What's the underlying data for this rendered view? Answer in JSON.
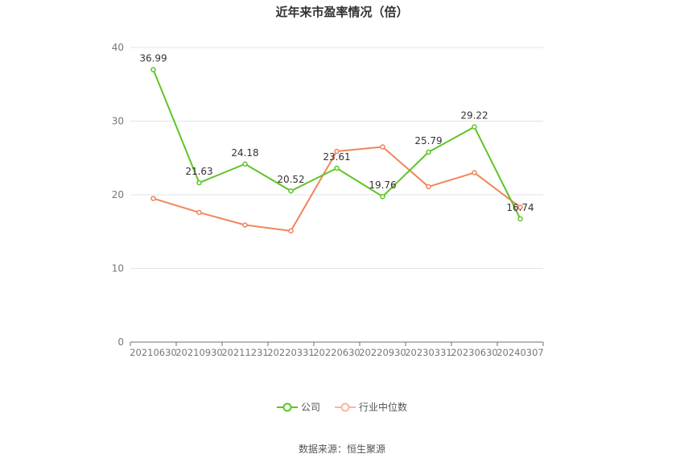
{
  "title": "近年来市盈率情况（倍）",
  "source": "数据来源：恒生聚源",
  "colors": {
    "company": "#5ec524",
    "median": "#f0855a"
  },
  "chart_data": {
    "type": "line",
    "categories": [
      "20210630",
      "20210930",
      "20211231",
      "20220331",
      "20220630",
      "20220930",
      "20230331",
      "20230630",
      "20240307"
    ],
    "series": [
      {
        "name": "公司",
        "values": [
          36.99,
          21.63,
          24.18,
          20.52,
          23.61,
          19.76,
          25.79,
          29.22,
          16.74
        ],
        "show_labels": true
      },
      {
        "name": "行业中位数",
        "values": [
          19.5,
          17.6,
          15.9,
          15.1,
          25.9,
          26.5,
          21.1,
          23.0,
          18.3
        ],
        "show_labels": false
      }
    ],
    "yticks": [
      0,
      10,
      20,
      30,
      40
    ],
    "ylim": [
      0,
      40
    ],
    "grid": true,
    "legend_position": "bottom"
  }
}
